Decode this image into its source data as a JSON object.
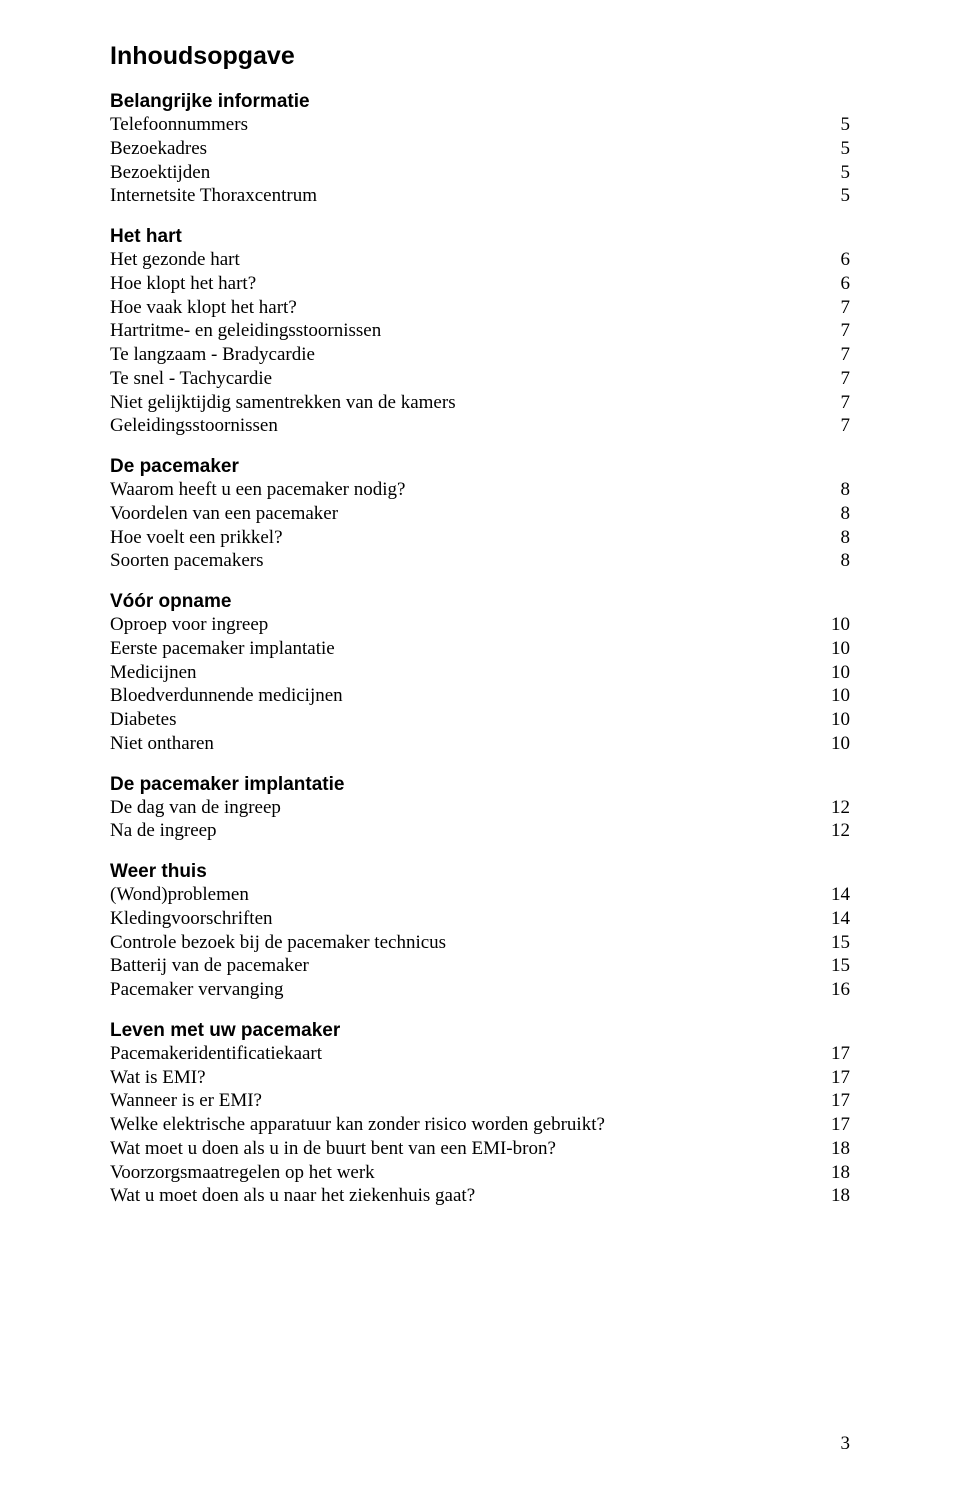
{
  "title": "Inhoudsopgave",
  "footer_page": "3",
  "sections": [
    {
      "heading": "Belangrijke informatie",
      "items": [
        {
          "label": "Telefoonnummers",
          "page": "5"
        },
        {
          "label": "Bezoekadres",
          "page": "5"
        },
        {
          "label": "Bezoektijden",
          "page": "5"
        },
        {
          "label": "Internetsite Thoraxcentrum",
          "page": "5"
        }
      ]
    },
    {
      "heading": "Het hart",
      "items": [
        {
          "label": "Het gezonde hart",
          "page": "6"
        },
        {
          "label": "Hoe klopt het hart?",
          "page": "6"
        },
        {
          "label": "Hoe vaak klopt het hart?",
          "page": "7"
        },
        {
          "label": "Hartritme- en geleidingsstoornissen",
          "page": "7"
        },
        {
          "label": "Te langzaam - Bradycardie",
          "page": "7"
        },
        {
          "label": "Te snel - Tachycardie",
          "page": "7"
        },
        {
          "label": "Niet gelijktijdig samentrekken van de kamers",
          "page": "7"
        },
        {
          "label": "Geleidingsstoornissen",
          "page": "7"
        }
      ]
    },
    {
      "heading": "De pacemaker",
      "items": [
        {
          "label": "Waarom heeft u een pacemaker nodig?",
          "page": "8"
        },
        {
          "label": "Voordelen van een pacemaker",
          "page": "8"
        },
        {
          "label": "Hoe voelt een prikkel?",
          "page": "8"
        },
        {
          "label": "Soorten pacemakers",
          "page": "8"
        }
      ]
    },
    {
      "heading": "Vóór opname",
      "items": [
        {
          "label": "Oproep voor ingreep",
          "page": "10"
        },
        {
          "label": "Eerste pacemaker implantatie",
          "page": "10"
        },
        {
          "label": "Medicijnen",
          "page": "10"
        },
        {
          "label": "Bloedverdunnende medicijnen",
          "page": "10"
        },
        {
          "label": "Diabetes",
          "page": "10"
        },
        {
          "label": "Niet ontharen",
          "page": "10"
        }
      ]
    },
    {
      "heading": "De pacemaker implantatie",
      "items": [
        {
          "label": "De dag van de ingreep",
          "page": "12"
        },
        {
          "label": "Na de ingreep",
          "page": "12"
        }
      ]
    },
    {
      "heading": "Weer thuis",
      "items": [
        {
          "label": "(Wond)problemen",
          "page": "14"
        },
        {
          "label": "Kledingvoorschriften",
          "page": "14"
        },
        {
          "label": "Controle bezoek bij de pacemaker technicus",
          "page": "15"
        },
        {
          "label": "Batterij van de pacemaker",
          "page": "15"
        },
        {
          "label": "Pacemaker vervanging",
          "page": "16"
        }
      ]
    },
    {
      "heading": "Leven met uw pacemaker",
      "items": [
        {
          "label": "Pacemakeridentificatiekaart",
          "page": "17"
        },
        {
          "label": "Wat is EMI?",
          "page": "17"
        },
        {
          "label": "Wanneer is er EMI?",
          "page": "17"
        },
        {
          "label": "Welke elektrische apparatuur kan zonder risico worden gebruikt?",
          "page": "17"
        },
        {
          "label": "Wat moet u doen als u in de buurt bent van een EMI-bron?",
          "page": "18"
        },
        {
          "label": "Voorzorgsmaatregelen op het werk",
          "page": "18"
        },
        {
          "label": "Wat u moet doen als u naar het ziekenhuis gaat?",
          "page": "18"
        }
      ]
    }
  ]
}
